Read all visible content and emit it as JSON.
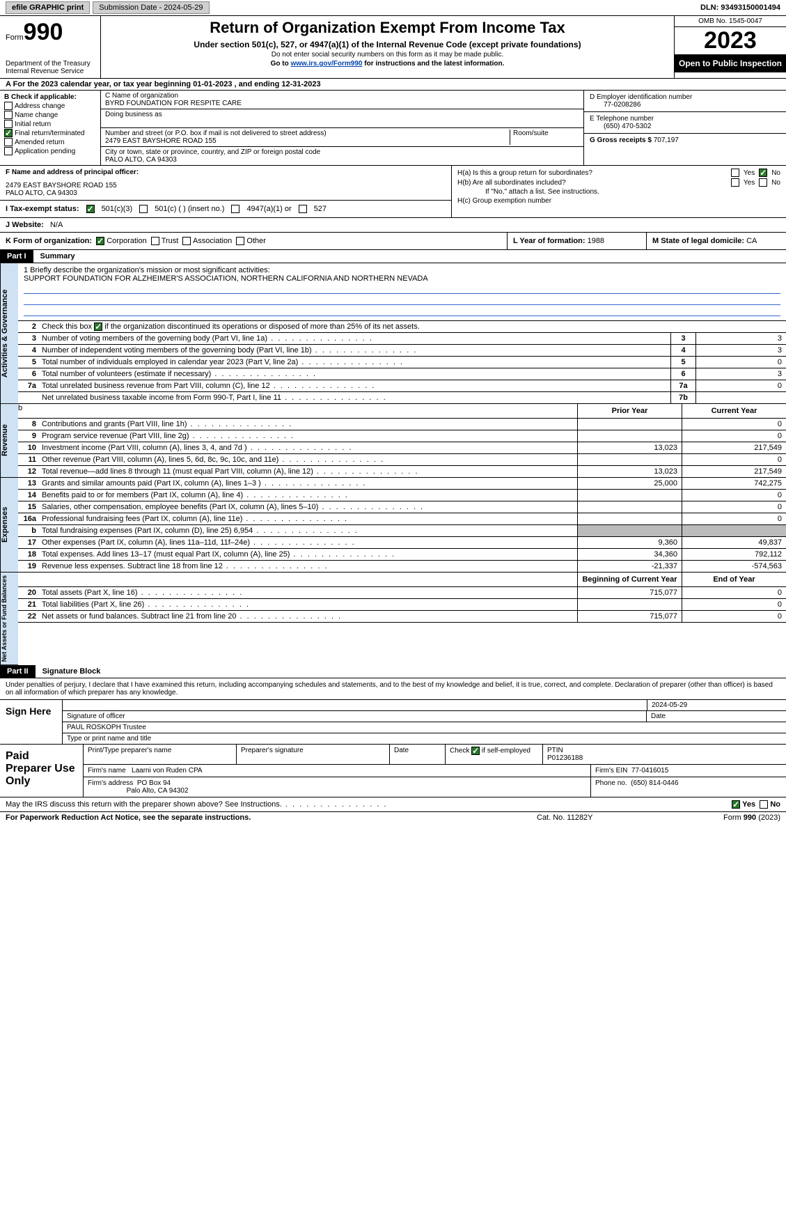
{
  "topbar": {
    "efile": "efile GRAPHIC print",
    "submission": "Submission Date - 2024-05-29",
    "dln": "DLN: 93493150001494"
  },
  "header": {
    "form_word": "Form",
    "form_num": "990",
    "dept": "Department of the Treasury Internal Revenue Service",
    "title": "Return of Organization Exempt From Income Tax",
    "subtitle": "Under section 501(c), 527, or 4947(a)(1) of the Internal Revenue Code (except private foundations)",
    "note1": "Do not enter social security numbers on this form as it may be made public.",
    "note2_pre": "Go to ",
    "note2_link": "www.irs.gov/Form990",
    "note2_post": " for instructions and the latest information.",
    "omb": "OMB No. 1545-0047",
    "year": "2023",
    "inspection": "Open to Public Inspection"
  },
  "row_a": "A For the 2023 calendar year, or tax year beginning 01-01-2023   , and ending 12-31-2023",
  "box_b": {
    "label": "B Check if applicable:",
    "opts": [
      "Address change",
      "Name change",
      "Initial return",
      "Final return/terminated",
      "Amended return",
      "Application pending"
    ],
    "checked_idx": 3
  },
  "box_c": {
    "name_lbl": "C Name of organization",
    "name": "BYRD FOUNDATION FOR RESPITE CARE",
    "dba_lbl": "Doing business as",
    "addr_lbl": "Number and street (or P.O. box if mail is not delivered to street address)",
    "addr": "2479 EAST BAYSHORE ROAD 155",
    "room_lbl": "Room/suite",
    "city_lbl": "City or town, state or province, country, and ZIP or foreign postal code",
    "city": "PALO ALTO, CA  94303"
  },
  "box_d": {
    "lbl": "D Employer identification number",
    "val": "77-0208286"
  },
  "box_e": {
    "lbl": "E Telephone number",
    "val": "(650) 470-5302"
  },
  "box_g": {
    "lbl": "G Gross receipts $",
    "val": "707,197"
  },
  "box_f": {
    "lbl": "F  Name and address of principal officer:",
    "l1": "2479 EAST BAYSHORE ROAD 155",
    "l2": "PALO ALTO, CA  94303"
  },
  "box_h": {
    "a": "H(a)  Is this a group return for subordinates?",
    "b": "H(b)  Are all subordinates included?",
    "b_note": "If \"No,\" attach a list. See instructions.",
    "c": "H(c)  Group exemption number"
  },
  "status": {
    "lbl": "I  Tax-exempt status:",
    "o1": "501(c)(3)",
    "o2": "501(c) (  ) (insert no.)",
    "o3": "4947(a)(1) or",
    "o4": "527"
  },
  "website": {
    "lbl": "J  Website:",
    "val": "N/A"
  },
  "k": {
    "lbl": "K Form of organization:",
    "o1": "Corporation",
    "o2": "Trust",
    "o3": "Association",
    "o4": "Other"
  },
  "l": {
    "lbl": "L Year of formation:",
    "val": "1988"
  },
  "m": {
    "lbl": "M State of legal domicile:",
    "val": "CA"
  },
  "part1": {
    "hdr": "Part I",
    "title": "Summary"
  },
  "mission": {
    "lbl": "1  Briefly describe the organization's mission or most significant activities:",
    "text": "SUPPORT FOUNDATION FOR ALZHEIMER'S ASSOCIATION, NORTHERN CALIFORNIA AND NORTHERN NEVADA"
  },
  "line2": "Check this box      if the organization discontinued its operations or disposed of more than 25% of its net assets.",
  "gov_lines": [
    {
      "n": "3",
      "d": "Number of voting members of the governing body (Part VI, line 1a)",
      "bn": "3",
      "bv": "3"
    },
    {
      "n": "4",
      "d": "Number of independent voting members of the governing body (Part VI, line 1b)",
      "bn": "4",
      "bv": "3"
    },
    {
      "n": "5",
      "d": "Total number of individuals employed in calendar year 2023 (Part V, line 2a)",
      "bn": "5",
      "bv": "0"
    },
    {
      "n": "6",
      "d": "Total number of volunteers (estimate if necessary)",
      "bn": "6",
      "bv": "3"
    },
    {
      "n": "7a",
      "d": "Total unrelated business revenue from Part VIII, column (C), line 12",
      "bn": "7a",
      "bv": "0"
    },
    {
      "n": "",
      "d": "Net unrelated business taxable income from Form 990-T, Part I, line 11",
      "bn": "7b",
      "bv": ""
    }
  ],
  "rev_hdr": {
    "py": "Prior Year",
    "cy": "Current Year"
  },
  "rev_lines": [
    {
      "n": "8",
      "d": "Contributions and grants (Part VIII, line 1h)",
      "py": "",
      "cy": "0"
    },
    {
      "n": "9",
      "d": "Program service revenue (Part VIII, line 2g)",
      "py": "",
      "cy": "0"
    },
    {
      "n": "10",
      "d": "Investment income (Part VIII, column (A), lines 3, 4, and 7d )",
      "py": "13,023",
      "cy": "217,549"
    },
    {
      "n": "11",
      "d": "Other revenue (Part VIII, column (A), lines 5, 6d, 8c, 9c, 10c, and 11e)",
      "py": "",
      "cy": "0"
    },
    {
      "n": "12",
      "d": "Total revenue—add lines 8 through 11 (must equal Part VIII, column (A), line 12)",
      "py": "13,023",
      "cy": "217,549"
    }
  ],
  "exp_lines": [
    {
      "n": "13",
      "d": "Grants and similar amounts paid (Part IX, column (A), lines 1–3 )",
      "py": "25,000",
      "cy": "742,275"
    },
    {
      "n": "14",
      "d": "Benefits paid to or for members (Part IX, column (A), line 4)",
      "py": "",
      "cy": "0"
    },
    {
      "n": "15",
      "d": "Salaries, other compensation, employee benefits (Part IX, column (A), lines 5–10)",
      "py": "",
      "cy": "0"
    },
    {
      "n": "16a",
      "d": "Professional fundraising fees (Part IX, column (A), line 11e)",
      "py": "",
      "cy": "0"
    },
    {
      "n": "b",
      "d": "Total fundraising expenses (Part IX, column (D), line 25) 6,954",
      "py": "__shade__",
      "cy": "__shade__"
    },
    {
      "n": "17",
      "d": "Other expenses (Part IX, column (A), lines 11a–11d, 11f–24e)",
      "py": "9,360",
      "cy": "49,837"
    },
    {
      "n": "18",
      "d": "Total expenses. Add lines 13–17 (must equal Part IX, column (A), line 25)",
      "py": "34,360",
      "cy": "792,112"
    },
    {
      "n": "19",
      "d": "Revenue less expenses. Subtract line 18 from line 12",
      "py": "-21,337",
      "cy": "-574,563"
    }
  ],
  "net_hdr": {
    "by": "Beginning of Current Year",
    "ey": "End of Year"
  },
  "net_lines": [
    {
      "n": "20",
      "d": "Total assets (Part X, line 16)",
      "py": "715,077",
      "cy": "0"
    },
    {
      "n": "21",
      "d": "Total liabilities (Part X, line 26)",
      "py": "",
      "cy": "0"
    },
    {
      "n": "22",
      "d": "Net assets or fund balances. Subtract line 21 from line 20",
      "py": "715,077",
      "cy": "0"
    }
  ],
  "side": {
    "gov": "Activities & Governance",
    "rev": "Revenue",
    "exp": "Expenses",
    "net": "Net Assets or Fund Balances"
  },
  "part2": {
    "hdr": "Part II",
    "title": "Signature Block"
  },
  "sig_text": "Under penalties of perjury, I declare that I have examined this return, including accompanying schedules and statements, and to the best of my knowledge and belief, it is true, correct, and complete. Declaration of preparer (other than officer) is based on all information of which preparer has any knowledge.",
  "sign": {
    "left": "Sign Here",
    "sig_lbl": "Signature of officer",
    "name": "PAUL ROSKOPH  Trustee",
    "name_lbl": "Type or print name and title",
    "date_lbl": "Date",
    "date": "2024-05-29"
  },
  "prep": {
    "left": "Paid Preparer Use Only",
    "h1": "Print/Type preparer's name",
    "h2": "Preparer's signature",
    "h3": "Date",
    "h4_pre": "Check",
    "h4_post": "if self-employed",
    "h5": "PTIN",
    "ptin": "P01236188",
    "firm_lbl": "Firm's name",
    "firm": "Laarni von Ruden CPA",
    "ein_lbl": "Firm's EIN",
    "ein": "77-0416015",
    "addr_lbl": "Firm's address",
    "addr1": "PO Box 94",
    "addr2": "Palo Alto, CA  94302",
    "phone_lbl": "Phone no.",
    "phone": "(650) 814-0446"
  },
  "discuss": "May the IRS discuss this return with the preparer shown above? See Instructions.",
  "footer": {
    "l": "For Paperwork Reduction Act Notice, see the separate instructions.",
    "m": "Cat. No. 11282Y",
    "r": "Form 990 (2023)"
  },
  "yn": {
    "yes": "Yes",
    "no": "No"
  }
}
